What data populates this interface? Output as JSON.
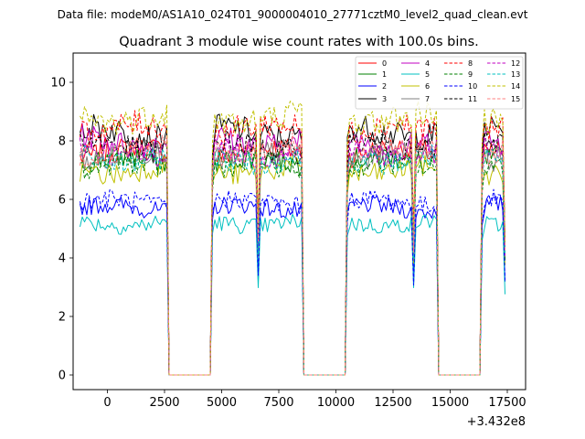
{
  "chart_data": {
    "type": "line",
    "suptitle": "Data file: modeM0/AS1A10_024T01_9000004010_27771cztM0_level2_quad_clean.evt",
    "title": "Quadrant 3 module wise count rates with 100.0s bins.",
    "xlabel": "",
    "ylabel": "",
    "x_offset_label": "+3.432e8",
    "xlim": [
      -1500,
      18300
    ],
    "ylim": [
      -0.5,
      11.0
    ],
    "xticks": [
      0,
      2500,
      5000,
      7500,
      10000,
      12500,
      15000,
      17500
    ],
    "xtick_labels": [
      "0",
      "2500",
      "5000",
      "7500",
      "10000",
      "12500",
      "15000",
      "17500"
    ],
    "yticks": [
      0,
      2,
      4,
      6,
      8,
      10
    ],
    "ytick_labels": [
      "0",
      "2",
      "4",
      "6",
      "8",
      "10"
    ],
    "grid": false,
    "legend_position": "top-right",
    "x_start": -1200,
    "x_step": 100,
    "gaps": [
      [
        2700,
        4500
      ],
      [
        8600,
        10400
      ],
      [
        14500,
        16300
      ]
    ],
    "segments": [
      [
        -1200,
        2600
      ],
      [
        4600,
        8500
      ],
      [
        10500,
        14400
      ],
      [
        16400,
        17400
      ]
    ],
    "dips": [
      {
        "x": 6600,
        "depth": 0.58
      },
      {
        "x": 13400,
        "depth": 0.55
      },
      {
        "x": 17400,
        "depth": 0.55
      }
    ],
    "series": [
      {
        "name": "0",
        "color": "#ff0000",
        "dash": "solid",
        "mean": 7.6
      },
      {
        "name": "1",
        "color": "#008000",
        "dash": "solid",
        "mean": 7.3
      },
      {
        "name": "2",
        "color": "#0000ff",
        "dash": "solid",
        "mean": 5.7
      },
      {
        "name": "3",
        "color": "#000000",
        "dash": "solid",
        "mean": 8.3
      },
      {
        "name": "4",
        "color": "#c000c0",
        "dash": "solid",
        "mean": 8.0
      },
      {
        "name": "5",
        "color": "#00c0c0",
        "dash": "solid",
        "mean": 5.2
      },
      {
        "name": "6",
        "color": "#c0c000",
        "dash": "solid",
        "mean": 7.0
      },
      {
        "name": "7",
        "color": "#808080",
        "dash": "solid",
        "mean": 7.5
      },
      {
        "name": "8",
        "color": "#ff0000",
        "dash": "dashed",
        "mean": 8.4
      },
      {
        "name": "9",
        "color": "#008000",
        "dash": "dashed",
        "mean": 7.1
      },
      {
        "name": "10",
        "color": "#0000ff",
        "dash": "dashed",
        "mean": 5.9
      },
      {
        "name": "11",
        "color": "#000000",
        "dash": "dashed",
        "mean": 7.8
      },
      {
        "name": "12",
        "color": "#c000c0",
        "dash": "dashed",
        "mean": 7.6
      },
      {
        "name": "13",
        "color": "#00c0c0",
        "dash": "dashed",
        "mean": 7.4
      },
      {
        "name": "14",
        "color": "#c0c000",
        "dash": "dashed",
        "mean": 8.8
      },
      {
        "name": "15",
        "color": "#ff8080",
        "dash": "dashed",
        "mean": 7.7
      }
    ]
  }
}
